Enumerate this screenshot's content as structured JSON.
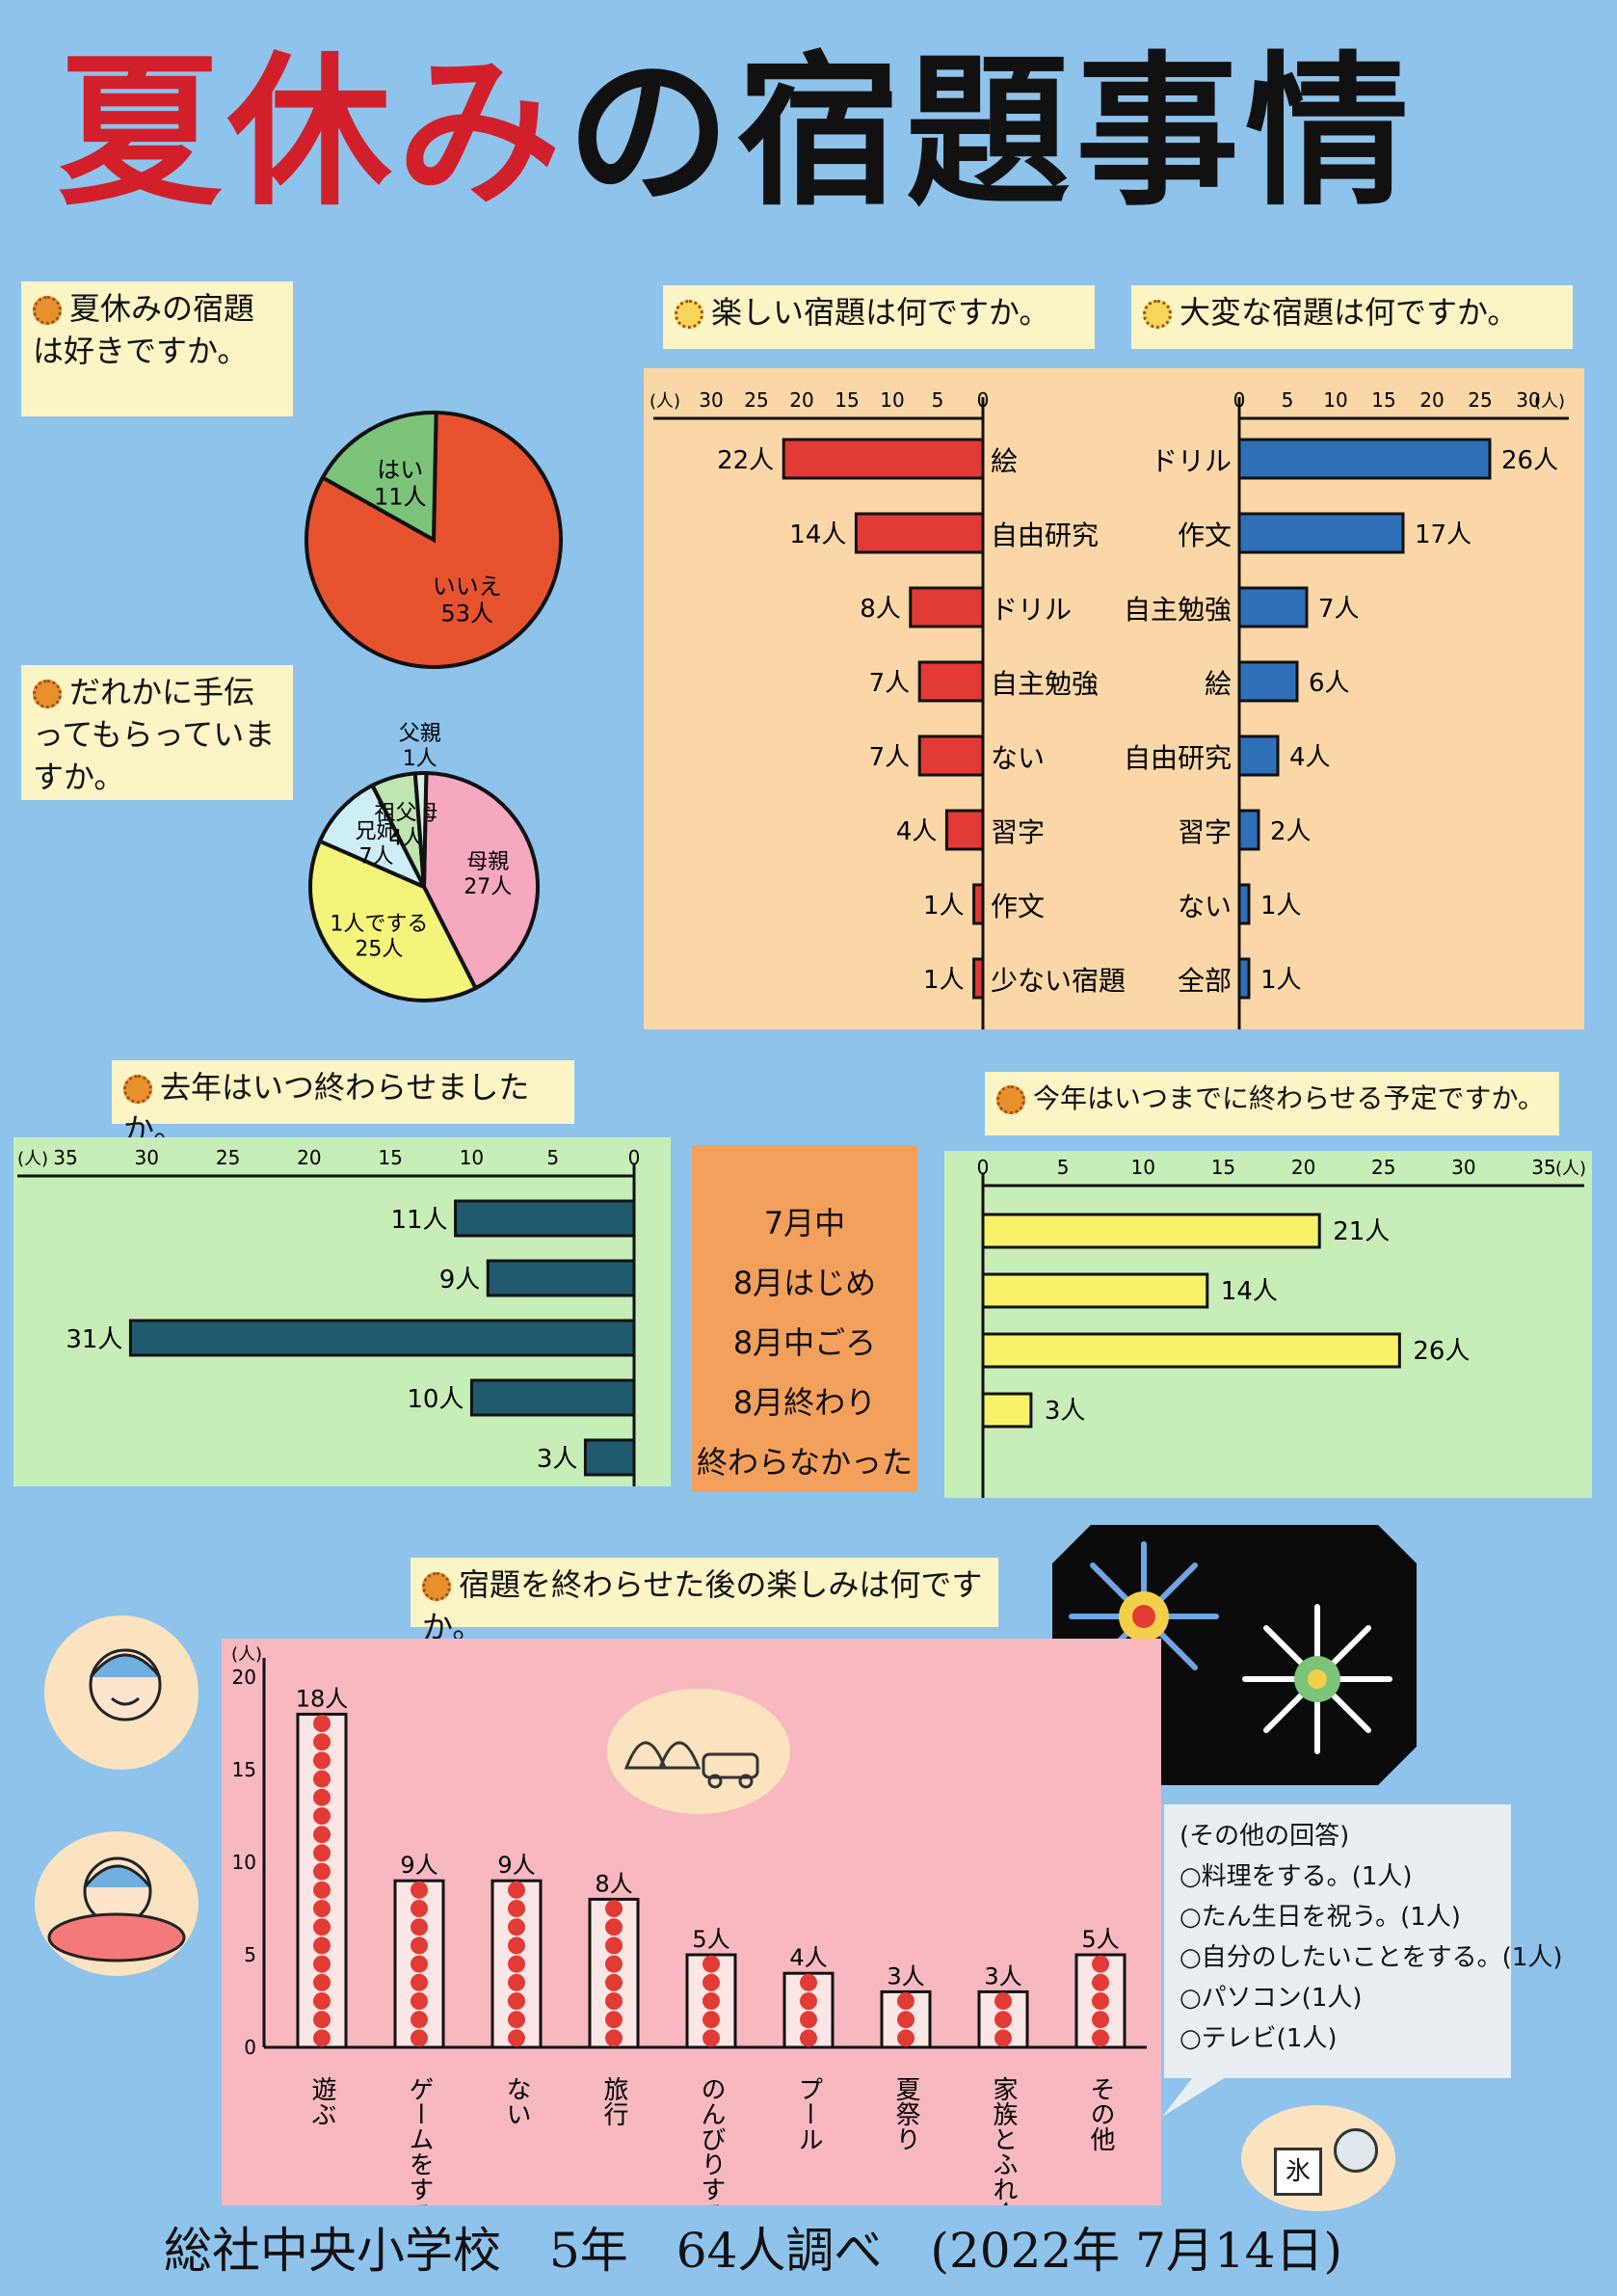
{
  "title": {
    "red": "夏休み",
    "black": "の宿題事情"
  },
  "like": {
    "question": "夏休みの宿題は好きですか。",
    "chart_data": {
      "type": "pie",
      "slices": [
        {
          "label": "いいえ",
          "value_label": "53人",
          "value": 53,
          "color": "#e8532f"
        },
        {
          "label": "はい",
          "value_label": "11人",
          "value": 11,
          "color": "#7cc47a"
        }
      ]
    }
  },
  "help": {
    "question": "だれかに手伝ってもらっていますか。",
    "chart_data": {
      "type": "pie",
      "slices": [
        {
          "label": "母親",
          "value_label": "27人",
          "value": 27,
          "color": "#f6a8be"
        },
        {
          "label": "1人でする",
          "value_label": "25人",
          "value": 25,
          "color": "#f4f47a"
        },
        {
          "label": "兄姉",
          "value_label": "7人",
          "value": 7,
          "color": "#cdeef6"
        },
        {
          "label": "祖父母",
          "value_label": "4人",
          "value": 4,
          "color": "#bfe6b0"
        },
        {
          "label": "父親",
          "value_label": "1人",
          "value": 1,
          "color": "#d8efe8"
        }
      ]
    }
  },
  "fun": {
    "question": "楽しい宿題は何ですか。",
    "chart_data": {
      "type": "bar",
      "orientation": "horizontal",
      "direction": "left",
      "categories": [
        "絵",
        "自由研究",
        "ドリル",
        "自主勉強",
        "ない",
        "習字",
        "作文",
        "少ない宿題"
      ],
      "values": [
        22,
        14,
        8,
        7,
        7,
        4,
        1,
        1
      ],
      "value_labels": [
        "22人",
        "14人",
        "8人",
        "7人",
        "7人",
        "4人",
        "1人",
        "1人"
      ],
      "unit": "(人)",
      "ticks": [
        "30",
        "25",
        "20",
        "15",
        "10",
        "5",
        "0"
      ],
      "xlim": [
        0,
        30
      ],
      "color": "#e23a35"
    }
  },
  "hard": {
    "question": "大変な宿題は何ですか。",
    "chart_data": {
      "type": "bar",
      "orientation": "horizontal",
      "direction": "right",
      "categories": [
        "ドリル",
        "作文",
        "自主勉強",
        "絵",
        "自由研究",
        "習字",
        "ない",
        "全部"
      ],
      "values": [
        26,
        17,
        7,
        6,
        4,
        2,
        1,
        1
      ],
      "value_labels": [
        "26人",
        "17人",
        "7人",
        "6人",
        "4人",
        "2人",
        "1人",
        "1人"
      ],
      "unit": "(人)",
      "ticks": [
        "0",
        "5",
        "10",
        "15",
        "20",
        "25",
        "30"
      ],
      "xlim": [
        0,
        30
      ],
      "color": "#2f6fb8"
    }
  },
  "middle_categories": [
    "7月中",
    "8月はじめ",
    "8月中ごろ",
    "8月終わり",
    "終わらなかった"
  ],
  "last_year": {
    "question": "去年はいつ終わらせましたか。",
    "chart_data": {
      "type": "bar",
      "orientation": "horizontal",
      "direction": "left",
      "values": [
        11,
        9,
        31,
        10,
        3
      ],
      "value_labels": [
        "11人",
        "9人",
        "31人",
        "10人",
        "3人"
      ],
      "unit": "(人)",
      "ticks": [
        "35",
        "30",
        "25",
        "20",
        "15",
        "10",
        "5",
        "0"
      ],
      "xlim": [
        0,
        35
      ],
      "color": "#1f5a6e"
    }
  },
  "this_year": {
    "question": "今年はいつまでに終わらせる予定ですか。",
    "chart_data": {
      "type": "bar",
      "orientation": "horizontal",
      "direction": "right",
      "values": [
        21,
        14,
        26,
        3
      ],
      "value_labels": [
        "21人",
        "14人",
        "26人",
        "3人"
      ],
      "unit": "(人)",
      "ticks": [
        "0",
        "5",
        "10",
        "15",
        "20",
        "25",
        "30",
        "35"
      ],
      "xlim": [
        0,
        35
      ],
      "color": "#f8f26a"
    }
  },
  "after": {
    "question": "宿題を終わらせた後の楽しみは何ですか。",
    "chart_data": {
      "type": "bar",
      "orientation": "vertical",
      "categories": [
        "遊ぶ",
        "ゲームをする",
        "ない",
        "旅行",
        "のんびりする",
        "プール",
        "夏祭り",
        "家族とふれ合う",
        "その他"
      ],
      "values": [
        18,
        9,
        9,
        8,
        5,
        4,
        3,
        3,
        5
      ],
      "value_labels": [
        "18人",
        "9人",
        "9人",
        "8人",
        "5人",
        "4人",
        "3人",
        "3人",
        "5人"
      ],
      "unit": "(人)",
      "yticks": [
        "0",
        "5",
        "10",
        "15",
        "20"
      ],
      "ylim": [
        0,
        20
      ],
      "color": "#e23a35"
    },
    "others_title": "(その他の回答)",
    "others": [
      "○料理をする。(1人)",
      "○たん生日を祝う。(1人)",
      "○自分のしたいことをする。(1人)",
      "○パソコン(1人)",
      "○テレビ(1人)"
    ],
    "ice_label": "氷"
  },
  "footer": "総社中央小学校　5年　64人調べ　(2022年 7月14日)"
}
